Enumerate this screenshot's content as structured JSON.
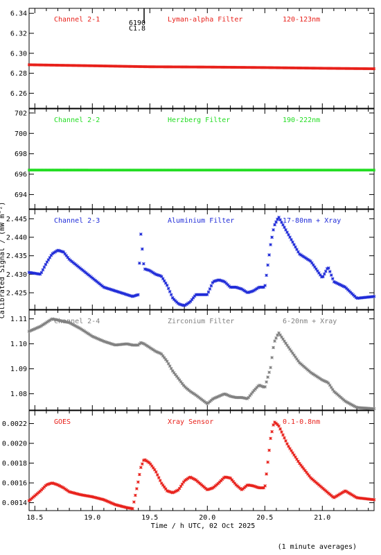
{
  "figure": {
    "ylabel": "Calibrated Signal / (mW m⁻²)",
    "xlabel": "Time / h UTC, 02 Oct 2025",
    "footnote": "(1 minute averages)",
    "flare_marker": {
      "x": 19.45,
      "label_top": "6190",
      "label_bottom": "C1.8"
    }
  },
  "chart_data": [
    {
      "type": "scatter",
      "panel_labels": [
        "Channel 2-1",
        "Lyman-alpha Filter",
        "120-123nm"
      ],
      "color": "#e8201a",
      "xlim": [
        18.45,
        21.45
      ],
      "ylim": [
        6.245,
        6.345
      ],
      "yticks": [
        6.26,
        6.28,
        6.3,
        6.32,
        6.34
      ],
      "ytick_labels": [
        "6.26",
        "6.28",
        "6.30",
        "6.32",
        "6.34"
      ],
      "series": [
        {
          "x": [
            18.45,
            19.0,
            19.5,
            20.0,
            20.5,
            21.0,
            21.45
          ],
          "y": [
            6.2885,
            6.2875,
            6.2865,
            6.2862,
            6.2857,
            6.285,
            6.2845
          ]
        }
      ]
    },
    {
      "type": "scatter",
      "panel_labels": [
        "Channel 2-2",
        "Herzberg Filter",
        "190-222nm"
      ],
      "color": "#22dd22",
      "xlim": [
        18.45,
        21.45
      ],
      "ylim": [
        692.6,
        702.4
      ],
      "yticks": [
        694,
        696,
        698,
        700,
        702
      ],
      "ytick_labels": [
        "694",
        "696",
        "698",
        "700",
        "702"
      ],
      "series": [
        {
          "x": [
            18.45,
            19.0,
            19.5,
            20.0,
            20.5,
            21.0,
            21.45
          ],
          "y": [
            696.4,
            696.4,
            696.4,
            696.4,
            696.4,
            696.4,
            696.4
          ]
        }
      ]
    },
    {
      "type": "scatter",
      "panel_labels": [
        "Channel 2-3",
        "Aluminium Filter",
        "17-80nm + Xray"
      ],
      "color": "#1f2bd8",
      "xlim": [
        18.45,
        21.45
      ],
      "ylim": [
        2.4205,
        2.4475
      ],
      "yticks": [
        2.425,
        2.43,
        2.435,
        2.44,
        2.445
      ],
      "ytick_labels": [
        "2.425",
        "2.430",
        "2.435",
        "2.440",
        "2.445"
      ],
      "series": [
        {
          "x": [
            18.45,
            18.55,
            18.6,
            18.65,
            18.7,
            18.75,
            18.8,
            18.9,
            19.0,
            19.1,
            19.2,
            19.3,
            19.35,
            19.4,
            19.42,
            19.45,
            19.5,
            19.55,
            19.6,
            19.65,
            19.7,
            19.75,
            19.8,
            19.85,
            19.9,
            20.0,
            20.05,
            20.1,
            20.15,
            20.2,
            20.25,
            20.3,
            20.35,
            20.4,
            20.45,
            20.5,
            20.55,
            20.58,
            20.62,
            20.7,
            20.8,
            20.9,
            21.0,
            21.05,
            21.1,
            21.2,
            21.3,
            21.45
          ],
          "y": [
            2.4305,
            2.43,
            2.433,
            2.4355,
            2.4365,
            2.436,
            2.434,
            2.4315,
            2.429,
            2.4265,
            2.4255,
            2.4245,
            2.424,
            2.4245,
            2.4415,
            2.4315,
            2.431,
            2.43,
            2.4295,
            2.427,
            2.4235,
            2.422,
            2.4215,
            2.4225,
            2.4245,
            2.4245,
            2.428,
            2.4285,
            2.428,
            2.4265,
            2.4265,
            2.426,
            2.425,
            2.4255,
            2.4265,
            2.4265,
            2.438,
            2.443,
            2.4455,
            2.441,
            2.4355,
            2.4335,
            2.429,
            2.432,
            2.428,
            2.4265,
            2.4235,
            2.424
          ]
        }
      ]
    },
    {
      "type": "scatter",
      "panel_labels": [
        "Channel 2-4",
        "Zirconium Filter",
        "6-20nm + Xray"
      ],
      "color": "#808080",
      "xlim": [
        18.45,
        21.45
      ],
      "ylim": [
        1.0735,
        1.1135
      ],
      "yticks": [
        1.08,
        1.09,
        1.1,
        1.11
      ],
      "ytick_labels": [
        "1.08",
        "1.09",
        "1.10",
        "1.11"
      ],
      "series": [
        {
          "x": [
            18.45,
            18.55,
            18.6,
            18.65,
            18.7,
            18.75,
            18.8,
            18.9,
            19.0,
            19.1,
            19.2,
            19.3,
            19.35,
            19.4,
            19.42,
            19.45,
            19.5,
            19.55,
            19.6,
            19.65,
            19.7,
            19.75,
            19.8,
            19.85,
            19.9,
            20.0,
            20.05,
            20.1,
            20.15,
            20.2,
            20.25,
            20.3,
            20.35,
            20.4,
            20.45,
            20.5,
            20.55,
            20.58,
            20.62,
            20.7,
            20.8,
            20.9,
            21.0,
            21.05,
            21.1,
            21.2,
            21.3,
            21.45
          ],
          "y": [
            1.105,
            1.107,
            1.1085,
            1.11,
            1.1095,
            1.109,
            1.1085,
            1.106,
            1.103,
            1.101,
            1.0995,
            1.1,
            1.0995,
            1.0995,
            1.1005,
            1.1,
            1.0985,
            1.097,
            1.096,
            1.093,
            1.089,
            1.086,
            1.083,
            1.081,
            1.0795,
            1.076,
            1.078,
            1.079,
            1.08,
            1.079,
            1.0785,
            1.0785,
            1.078,
            1.081,
            1.0835,
            1.0825,
            1.0905,
            1.1005,
            1.1045,
            1.099,
            1.0925,
            1.0885,
            1.0855,
            1.0845,
            1.081,
            1.077,
            1.0745,
            1.074
          ]
        }
      ]
    },
    {
      "type": "scatter",
      "panel_labels": [
        "GOES",
        "Xray Sensor",
        "0.1-0.8nm"
      ],
      "color": "#e8201a",
      "xlim": [
        18.45,
        21.45
      ],
      "ylim": [
        0.00132,
        0.00233
      ],
      "yticks": [
        0.0014,
        0.0016,
        0.0018,
        0.002,
        0.0022
      ],
      "ytick_labels": [
        "0.0014",
        "0.0016",
        "0.0018",
        "0.0020",
        "0.0022"
      ],
      "series": [
        {
          "x": [
            18.45,
            18.55,
            18.6,
            18.65,
            18.7,
            18.75,
            18.8,
            18.9,
            19.0,
            19.1,
            19.2,
            19.3,
            19.35,
            19.4,
            19.42,
            19.45,
            19.5,
            19.55,
            19.6,
            19.65,
            19.7,
            19.75,
            19.8,
            19.85,
            19.9,
            20.0,
            20.05,
            20.1,
            20.15,
            20.2,
            20.25,
            20.3,
            20.35,
            20.4,
            20.45,
            20.5,
            20.55,
            20.58,
            20.62,
            20.7,
            20.8,
            20.9,
            21.0,
            21.05,
            21.1,
            21.2,
            21.3,
            21.45
          ],
          "y": [
            0.00142,
            0.00152,
            0.00158,
            0.0016,
            0.00158,
            0.00155,
            0.00151,
            0.00148,
            0.00146,
            0.00143,
            0.00138,
            0.00135,
            0.00134,
            0.00162,
            0.00175,
            0.00184,
            0.0018,
            0.00172,
            0.0016,
            0.00152,
            0.0015,
            0.00153,
            0.00162,
            0.00166,
            0.00163,
            0.00153,
            0.00155,
            0.0016,
            0.00166,
            0.00165,
            0.00158,
            0.00153,
            0.00158,
            0.00157,
            0.00155,
            0.00155,
            0.00205,
            0.00222,
            0.00218,
            0.00198,
            0.0018,
            0.00165,
            0.00155,
            0.0015,
            0.00145,
            0.00152,
            0.00145,
            0.00143
          ]
        }
      ]
    }
  ],
  "xaxis": {
    "ticks": [
      18.5,
      19.0,
      19.5,
      20.0,
      20.5,
      21.0
    ],
    "tick_labels": [
      "18.5",
      "19.0",
      "19.5",
      "20.0",
      "20.5",
      "21.0"
    ]
  }
}
